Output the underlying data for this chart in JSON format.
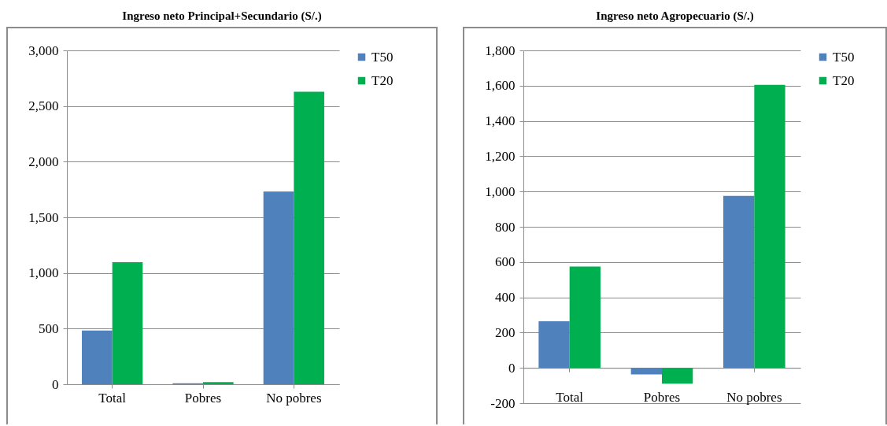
{
  "chart_data": [
    {
      "type": "bar",
      "title": "Ingreso neto Principal+Secundario (S/.)",
      "categories": [
        "Total",
        "Pobres",
        "No pobres"
      ],
      "series": [
        {
          "name": "T50",
          "color": "#4f81bd",
          "values": [
            483,
            9,
            1732
          ]
        },
        {
          "name": "T20",
          "color": "#00b050",
          "values": [
            1096,
            19,
            2628
          ]
        }
      ],
      "ylim": [
        0,
        3000
      ],
      "yticks": [
        {
          "value": 0,
          "label": "0"
        },
        {
          "value": 500,
          "label": "500"
        },
        {
          "value": 1000,
          "label": "1,000"
        },
        {
          "value": 1500,
          "label": "1,500"
        },
        {
          "value": 2000,
          "label": "2,000"
        },
        {
          "value": 2500,
          "label": "2,500"
        },
        {
          "value": 3000,
          "label": "3,000"
        }
      ],
      "grid": "y",
      "legend": "right"
    },
    {
      "type": "bar",
      "title": "Ingreso neto Agropecuario (S/.)",
      "categories": [
        "Total",
        "Pobres",
        "No pobres"
      ],
      "series": [
        {
          "name": "T50",
          "color": "#4f81bd",
          "values": [
            264,
            -37,
            975
          ]
        },
        {
          "name": "T20",
          "color": "#00b050",
          "values": [
            574,
            -89,
            1605
          ]
        }
      ],
      "ylim": [
        -200,
        1800
      ],
      "yticks": [
        {
          "value": -200,
          "label": "-200"
        },
        {
          "value": 0,
          "label": "0"
        },
        {
          "value": 200,
          "label": "200"
        },
        {
          "value": 400,
          "label": "400"
        },
        {
          "value": 600,
          "label": "600"
        },
        {
          "value": 800,
          "label": "800"
        },
        {
          "value": 1000,
          "label": "1,000"
        },
        {
          "value": 1200,
          "label": "1,200"
        },
        {
          "value": 1400,
          "label": "1,400"
        },
        {
          "value": 1600,
          "label": "1,600"
        },
        {
          "value": 1800,
          "label": "1,800"
        }
      ],
      "grid": "y",
      "legend": "right"
    }
  ]
}
